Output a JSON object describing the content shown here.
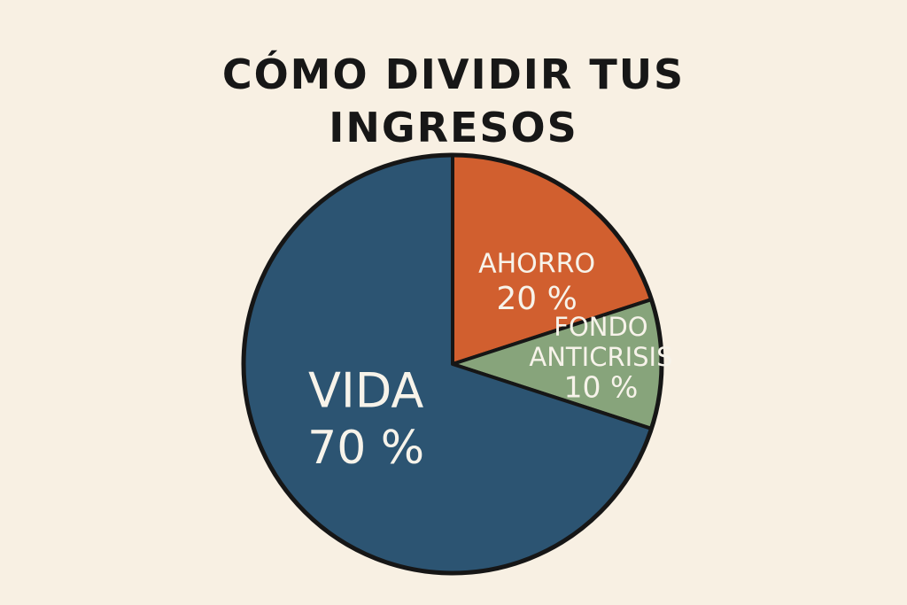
{
  "title": {
    "line1": "CÓMO DIVIDIR TUS",
    "line2": "INGRESOS"
  },
  "chart_data": {
    "type": "pie",
    "title": "CÓMO DIVIDIR TUS INGRESOS",
    "slices": [
      {
        "name": "AHORRO",
        "value": 20,
        "value_label": "20 %",
        "color": "#d15f2f"
      },
      {
        "name": "FONDO ANTICRISIS",
        "label_lines": [
          "FONDO",
          "ANTICRISIS"
        ],
        "value": 10,
        "value_label": "10 %",
        "color": "#87a47b"
      },
      {
        "name": "VIDA",
        "value": 70,
        "value_label": "70 %",
        "color": "#2c5472"
      }
    ]
  },
  "colors": {
    "background": "#f8f0e3",
    "outline": "#161616",
    "label_text": "#f7f3ea"
  }
}
